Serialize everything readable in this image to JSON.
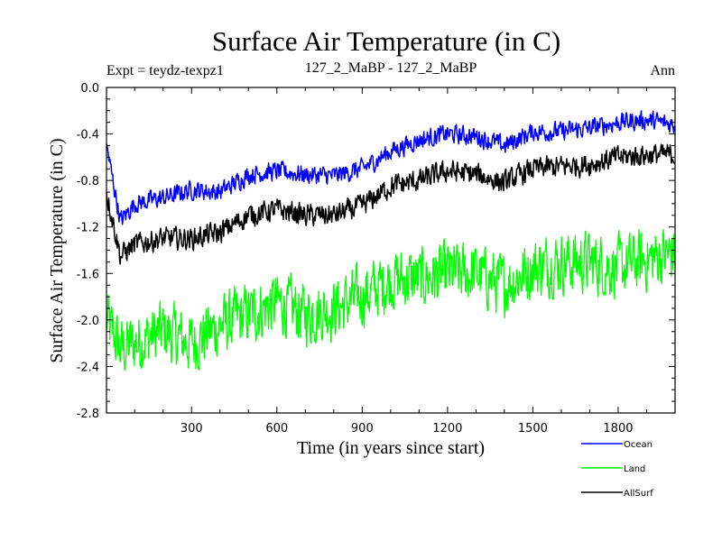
{
  "chart_data": {
    "type": "line",
    "title": "Surface Air Temperature (in C)",
    "subtitle_left": "Expt = teydz-texpz1",
    "subtitle_center": "127_2_MaBP - 127_2_MaBP",
    "subtitle_right": "Ann",
    "xlabel": "Time (in years since start)",
    "ylabel": "Surface Air Temperature (in C)",
    "xlim": [
      1,
      2000
    ],
    "ylim": [
      -2.8,
      0.0
    ],
    "xticks": [
      300,
      600,
      900,
      1200,
      1500,
      1800
    ],
    "xtick_labels": [
      "300",
      "600",
      "900",
      "1200",
      "1500",
      "1800"
    ],
    "yticks": [
      0.0,
      -0.4,
      -0.8,
      -1.2,
      -1.6,
      -2.0,
      -2.4,
      -2.8
    ],
    "ytick_labels": [
      "0.0",
      "-0.4",
      "-0.8",
      "-1.2",
      "-1.6",
      "-2.0",
      "-2.4",
      "-2.8"
    ],
    "grid": false,
    "legend_position": "bottom-right, outside plot",
    "series": [
      {
        "name": "Ocean",
        "color": "#0000ff",
        "x": [
          1,
          50,
          100,
          200,
          300,
          400,
          500,
          600,
          700,
          800,
          900,
          1000,
          1100,
          1200,
          1300,
          1400,
          1500,
          1600,
          1700,
          1800,
          1900,
          2000
        ],
        "values": [
          -0.5,
          -1.15,
          -1.0,
          -0.95,
          -0.88,
          -0.9,
          -0.75,
          -0.72,
          -0.75,
          -0.76,
          -0.7,
          -0.55,
          -0.45,
          -0.4,
          -0.42,
          -0.5,
          -0.38,
          -0.38,
          -0.35,
          -0.3,
          -0.28,
          -0.32
        ],
        "noise_amplitude": 0.11
      },
      {
        "name": "Land",
        "color": "#00ff00",
        "x": [
          1,
          50,
          100,
          200,
          300,
          400,
          500,
          600,
          700,
          800,
          900,
          1000,
          1100,
          1200,
          1300,
          1400,
          1500,
          1600,
          1700,
          1800,
          1900,
          2000
        ],
        "values": [
          -2.0,
          -2.25,
          -2.2,
          -2.1,
          -2.2,
          -2.05,
          -1.95,
          -1.85,
          -1.95,
          -1.9,
          -1.8,
          -1.65,
          -1.65,
          -1.6,
          -1.6,
          -1.7,
          -1.55,
          -1.5,
          -1.5,
          -1.55,
          -1.48,
          -1.42
        ],
        "noise_amplitude": 0.36
      },
      {
        "name": "AllSurf",
        "color": "#000000",
        "x": [
          1,
          50,
          100,
          200,
          300,
          400,
          500,
          600,
          700,
          800,
          900,
          1000,
          1100,
          1200,
          1300,
          1400,
          1500,
          1600,
          1700,
          1800,
          1900,
          2000
        ],
        "values": [
          -0.9,
          -1.45,
          -1.35,
          -1.3,
          -1.3,
          -1.25,
          -1.1,
          -1.05,
          -1.1,
          -1.1,
          -1.02,
          -0.85,
          -0.8,
          -0.72,
          -0.75,
          -0.82,
          -0.7,
          -0.68,
          -0.66,
          -0.6,
          -0.58,
          -0.58
        ],
        "noise_amplitude": 0.13
      }
    ]
  }
}
